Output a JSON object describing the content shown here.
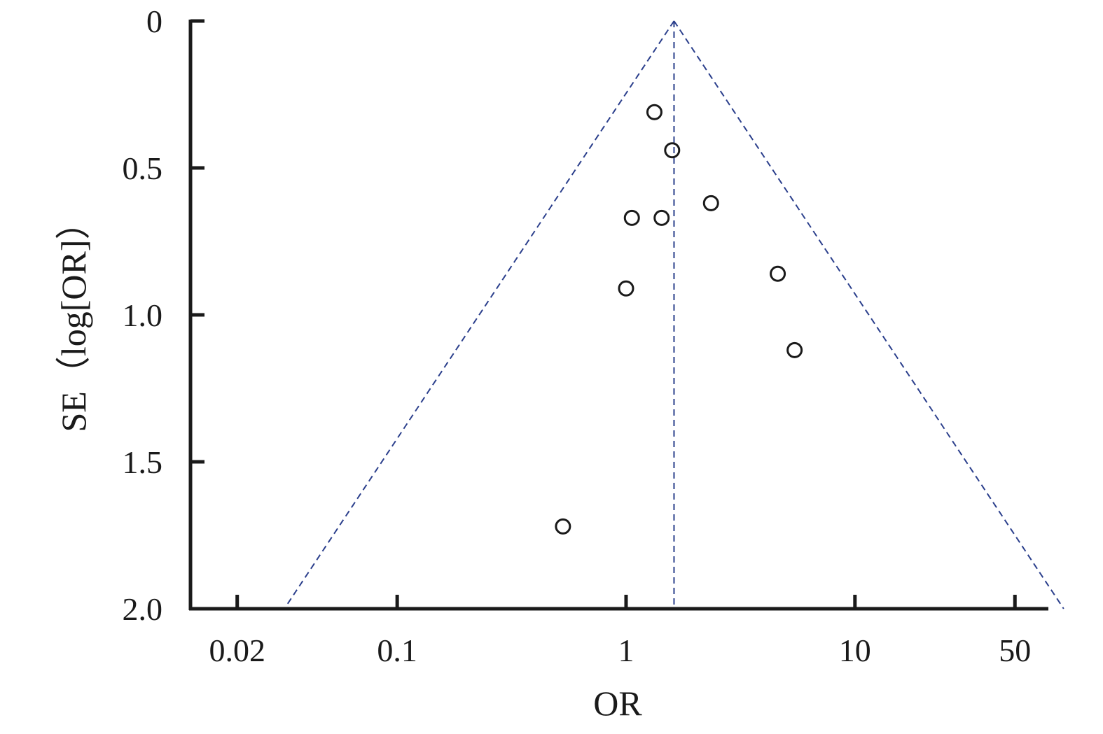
{
  "chart_data": {
    "type": "scatter",
    "subtype": "funnel-plot",
    "xlabel": "OR",
    "ylabel": "SE（log[OR]）",
    "x_scale": "log",
    "xlim": [
      0.0125,
      70
    ],
    "ylim": [
      0,
      2.0
    ],
    "y_inverted": true,
    "grid": false,
    "legend": "none",
    "x_ticks": [
      {
        "value": 0.02,
        "label": "0.02"
      },
      {
        "value": 0.1,
        "label": "0.1"
      },
      {
        "value": 1,
        "label": "1"
      },
      {
        "value": 10,
        "label": "10"
      },
      {
        "value": 50,
        "label": "50"
      }
    ],
    "y_ticks": [
      {
        "value": 0,
        "label": "0"
      },
      {
        "value": 0.5,
        "label": "0.5"
      },
      {
        "value": 1.0,
        "label": "1.0"
      },
      {
        "value": 1.5,
        "label": "1.5"
      },
      {
        "value": 2.0,
        "label": "2.0"
      }
    ],
    "pooled_or": 1.62,
    "funnel_se_max": 2.0,
    "funnel_color": "#2b3f8c",
    "point_color": "#1a1a1a",
    "points": [
      {
        "x": 1.33,
        "y": 0.31
      },
      {
        "x": 1.59,
        "y": 0.44
      },
      {
        "x": 2.35,
        "y": 0.62
      },
      {
        "x": 1.06,
        "y": 0.67
      },
      {
        "x": 1.43,
        "y": 0.67
      },
      {
        "x": 4.6,
        "y": 0.86
      },
      {
        "x": 1.0,
        "y": 0.91
      },
      {
        "x": 5.45,
        "y": 1.12
      },
      {
        "x": 0.53,
        "y": 1.72
      }
    ]
  }
}
